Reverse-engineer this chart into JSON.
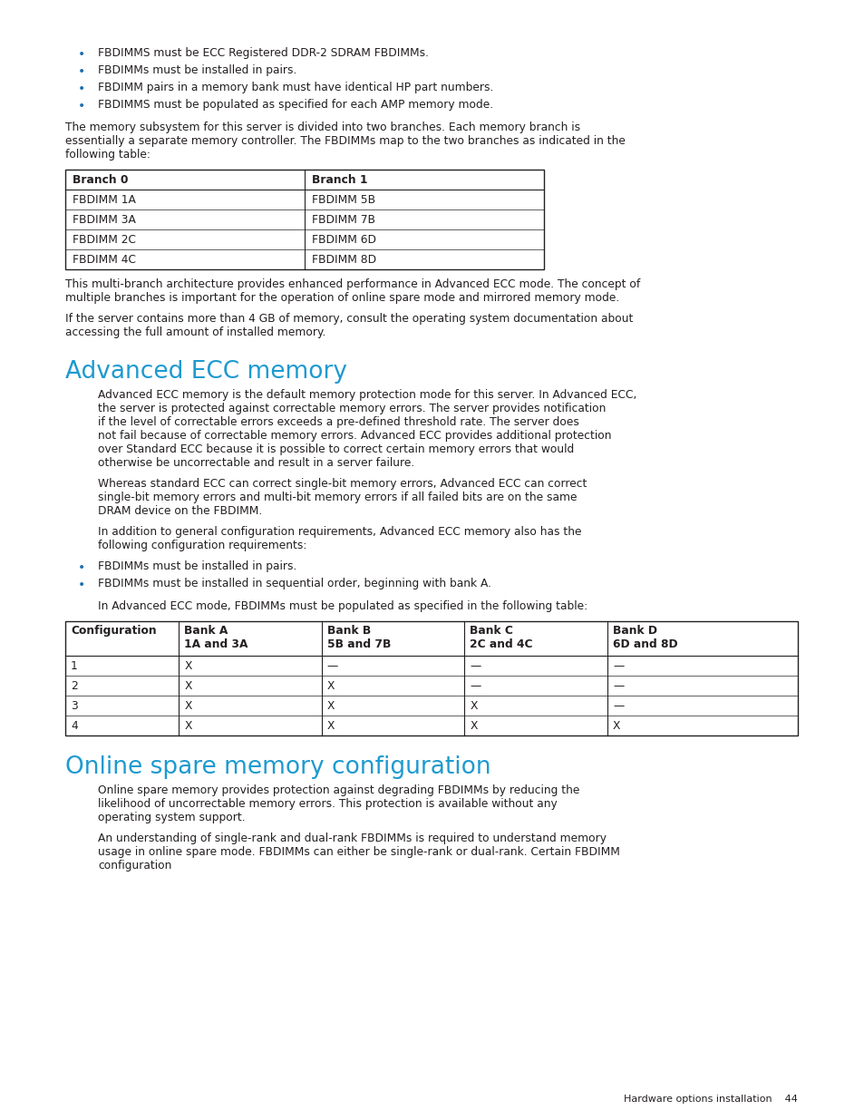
{
  "bg_color": "#ffffff",
  "text_color": "#231f20",
  "heading_color": "#1d9ad0",
  "bullet_color": "#1d6faa",
  "bullet_points_top": [
    "FBDIMMS must be ECC Registered DDR-2 SDRAM FBDIMMs.",
    "FBDIMMs must be installed in pairs.",
    "FBDIMM pairs in a memory bank must have identical HP part numbers.",
    "FBDIMMS must be populated as specified for each AMP memory mode."
  ],
  "para1": "The memory subsystem for this server is divided into two branches. Each memory branch is essentially a separate memory controller. The FBDIMMs map to the two branches as indicated in the following table:",
  "table1_headers": [
    "Branch 0",
    "Branch 1"
  ],
  "table1_rows": [
    [
      "FBDIMM 1A",
      "FBDIMM 5B"
    ],
    [
      "FBDIMM 3A",
      "FBDIMM 7B"
    ],
    [
      "FBDIMM 2C",
      "FBDIMM 6D"
    ],
    [
      "FBDIMM 4C",
      "FBDIMM 8D"
    ]
  ],
  "para2": "This multi-branch architecture provides enhanced performance in Advanced ECC mode. The concept of multiple branches is important for the operation of online spare mode and mirrored memory mode.",
  "para3": "If the server contains more than 4 GB of memory, consult the operating system documentation about accessing the full amount of installed memory.",
  "heading1": "Advanced ECC memory",
  "para4": "Advanced ECC memory is the default memory protection mode for this server. In Advanced ECC, the server is protected against correctable memory errors. The server provides notification if the level of correctable errors exceeds a pre-defined threshold rate. The server does not fail because of correctable memory errors. Advanced ECC provides additional protection over Standard ECC because it is possible to correct certain memory errors that would otherwise be uncorrectable and result in a server failure.",
  "para5": "Whereas standard ECC can correct single-bit memory errors, Advanced ECC can correct single-bit memory errors and multi-bit memory errors if all failed bits are on the same DRAM device on the FBDIMM.",
  "para6": "In addition to general configuration requirements, Advanced ECC memory also has the following configuration requirements:",
  "bullet_points_ecc": [
    "FBDIMMs must be installed in pairs.",
    "FBDIMMs must be installed in sequential order, beginning with bank A."
  ],
  "para7": "In Advanced ECC mode, FBDIMMs must be populated as specified in the following table:",
  "table2_col_labels": [
    "Configuration",
    "Bank A",
    "Bank B",
    "Bank C",
    "Bank D"
  ],
  "table2_col_sublabels": [
    "",
    "1A and 3A",
    "5B and 7B",
    "2C and 4C",
    "6D and 8D"
  ],
  "table2_rows": [
    [
      "1",
      "X",
      "—",
      "—",
      "—"
    ],
    [
      "2",
      "X",
      "X",
      "—",
      "—"
    ],
    [
      "3",
      "X",
      "X",
      "X",
      "—"
    ],
    [
      "4",
      "X",
      "X",
      "X",
      "X"
    ]
  ],
  "heading2": "Online spare memory configuration",
  "para8": "Online spare memory provides protection against degrading FBDIMMs by reducing the likelihood of uncorrectable memory errors. This protection is available without any operating system support.",
  "para9": "An understanding of single-rank and dual-rank FBDIMMs is required to understand memory usage in online spare mode. FBDIMMs can either be single-rank or dual-rank. Certain FBDIMM configuration",
  "footer": "Hardware options installation    44"
}
